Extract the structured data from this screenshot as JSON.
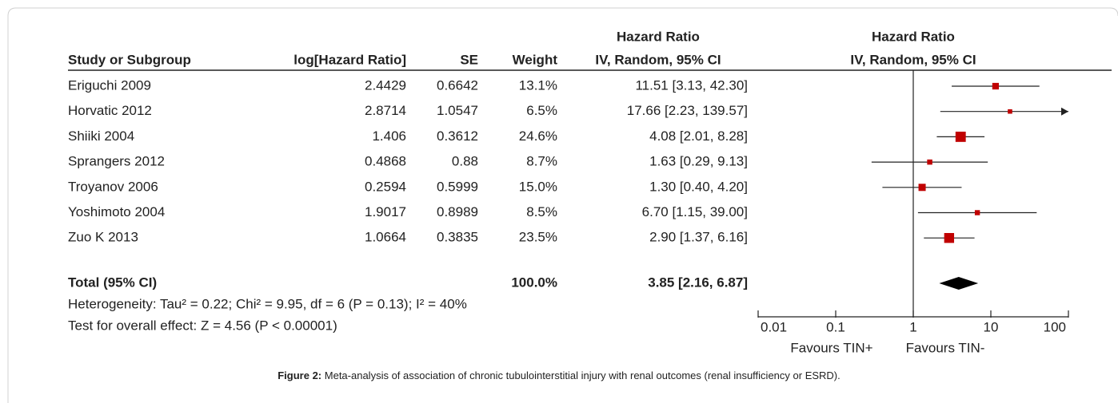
{
  "chart_data": {
    "type": "forest",
    "effect_header": "Hazard Ratio",
    "method_header": "IV, Random, 95% CI",
    "columns": [
      "Study or Subgroup",
      "log[Hazard Ratio]",
      "SE",
      "Weight"
    ],
    "studies": [
      {
        "name": "Eriguchi 2009",
        "log_hr": 2.4429,
        "se": 0.6642,
        "weight": {
          "value": 13.1,
          "label": "13.1%"
        },
        "effect": 11.51,
        "ci": [
          3.13,
          42.3
        ],
        "ci_label": "11.51 [3.13, 42.30]"
      },
      {
        "name": "Horvatic 2012",
        "log_hr": 2.8714,
        "se": 1.0547,
        "weight": {
          "value": 6.5,
          "label": "6.5%"
        },
        "effect": 17.66,
        "ci": [
          2.23,
          139.57
        ],
        "ci_label": "17.66 [2.23, 139.57]"
      },
      {
        "name": "Shiiki 2004",
        "log_hr": 1.406,
        "se": 0.3612,
        "weight": {
          "value": 24.6,
          "label": "24.6%"
        },
        "effect": 4.08,
        "ci": [
          2.01,
          8.28
        ],
        "ci_label": "4.08 [2.01, 8.28]"
      },
      {
        "name": "Sprangers 2012",
        "log_hr": 0.4868,
        "se": 0.88,
        "weight": {
          "value": 8.7,
          "label": "8.7%"
        },
        "effect": 1.63,
        "ci": [
          0.29,
          9.13
        ],
        "ci_label": "1.63 [0.29, 9.13]"
      },
      {
        "name": "Troyanov 2006",
        "log_hr": 0.2594,
        "se": 0.5999,
        "weight": {
          "value": 15.0,
          "label": "15.0%"
        },
        "effect": 1.3,
        "ci": [
          0.4,
          4.2
        ],
        "ci_label": "1.30 [0.40, 4.20]"
      },
      {
        "name": "Yoshimoto 2004",
        "log_hr": 1.9017,
        "se": 0.8989,
        "weight": {
          "value": 8.5,
          "label": "8.5%"
        },
        "effect": 6.7,
        "ci": [
          1.15,
          39.0
        ],
        "ci_label": "6.70 [1.15, 39.00]"
      },
      {
        "name": "Zuo K 2013",
        "log_hr": 1.0664,
        "se": 0.3835,
        "weight": {
          "value": 23.5,
          "label": "23.5%"
        },
        "effect": 2.9,
        "ci": [
          1.37,
          6.16
        ],
        "ci_label": "2.90 [1.37, 6.16]"
      }
    ],
    "total": {
      "name": "Total (95% CI)",
      "weight": {
        "value": 100.0,
        "label": "100.0%"
      },
      "effect": 3.85,
      "ci": [
        2.16,
        6.87
      ],
      "ci_label": "3.85 [2.16, 6.87]"
    },
    "heterogeneity": "Heterogeneity: Tau² = 0.22; Chi² = 9.95, df = 6 (P = 0.13); I² = 40%",
    "overall_effect": "Test for overall effect: Z = 4.56 (P < 0.00001)",
    "xscale": "log",
    "xlim": [
      0.01,
      100
    ],
    "xticks": [
      0.01,
      0.1,
      1,
      10,
      100
    ],
    "favours_left": "Favours TIN+",
    "favours_right": "Favours TIN-",
    "marker_color": "#c00000",
    "caption_label": "Figure 2:",
    "caption_text": "Meta-analysis of association of chronic tubulointerstitial injury with renal outcomes (renal insufficiency or ESRD)."
  }
}
